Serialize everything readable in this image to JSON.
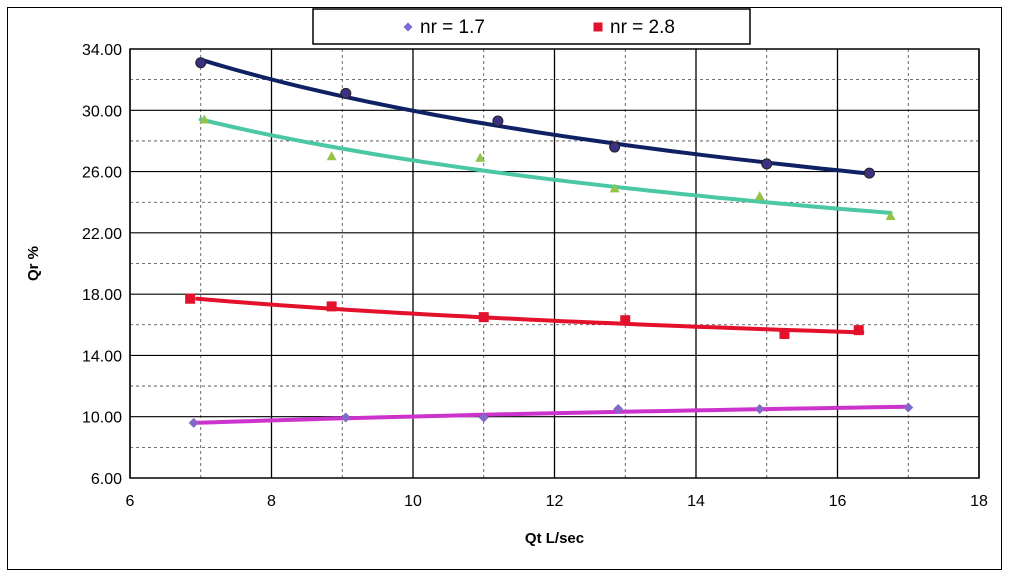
{
  "chart_data": {
    "type": "scatter",
    "title": "",
    "xlabel": "Qt L/sec",
    "ylabel": "Qr %",
    "xlim": [
      6,
      18
    ],
    "ylim": [
      6,
      34
    ],
    "x_ticks": [
      6,
      8,
      10,
      12,
      14,
      16,
      18
    ],
    "y_ticks": [
      6,
      10,
      14,
      18,
      22,
      26,
      30,
      34
    ],
    "x_tick_labels": [
      "6",
      "8",
      "10",
      "12",
      "14",
      "16",
      "18"
    ],
    "y_tick_labels": [
      "6.00",
      "10.00",
      "14.00",
      "18.00",
      "22.00",
      "26.00",
      "30.00",
      "34.00"
    ],
    "grid": true,
    "legend_position": "top-center",
    "legend": [
      {
        "label": "nr = 1.7",
        "color": "#7b68d8",
        "marker": "diamond"
      },
      {
        "label": "nr = 2.8",
        "color": "#e3112b",
        "marker": "square"
      }
    ],
    "series": [
      {
        "name": "nr = 1.7",
        "marker": "diamond",
        "marker_color": "#8468c8",
        "trend_color": "#cc33cc",
        "x": [
          6.9,
          9.05,
          11.0,
          12.9,
          14.9,
          17.0
        ],
        "y": [
          9.6,
          9.95,
          9.95,
          10.5,
          10.5,
          10.6
        ],
        "trend_x": [
          6.95,
          17.0
        ],
        "trend_y": [
          9.6,
          10.65
        ]
      },
      {
        "name": "nr = 2.8",
        "marker": "square",
        "marker_color": "#e3112b",
        "trend_color": "#e3112b",
        "x": [
          6.85,
          8.85,
          11.0,
          13.0,
          15.25,
          16.3
        ],
        "y": [
          17.7,
          17.2,
          16.5,
          16.3,
          15.4,
          15.65
        ],
        "trend_x": [
          6.95,
          16.35
        ],
        "trend_y": [
          17.7,
          15.5
        ]
      },
      {
        "marker": "triangle",
        "marker_color": "#94c34a",
        "trend_color": "#4bc8a3",
        "x": [
          7.05,
          8.85,
          10.95,
          12.85,
          14.9,
          16.75
        ],
        "y": [
          29.4,
          27.0,
          26.9,
          24.9,
          24.4,
          23.1
        ],
        "trend_x": [
          7.0,
          16.75
        ],
        "trend_y": [
          29.4,
          23.3
        ]
      },
      {
        "marker": "circle",
        "marker_color": "#3d3282",
        "trend_color": "#0f2163",
        "x": [
          7.0,
          9.05,
          11.2,
          12.85,
          15.0,
          16.45
        ],
        "y": [
          33.1,
          31.1,
          29.3,
          27.6,
          26.5,
          25.9
        ],
        "trend_x": [
          7.0,
          16.5
        ],
        "trend_y": [
          33.3,
          25.85
        ]
      }
    ]
  }
}
